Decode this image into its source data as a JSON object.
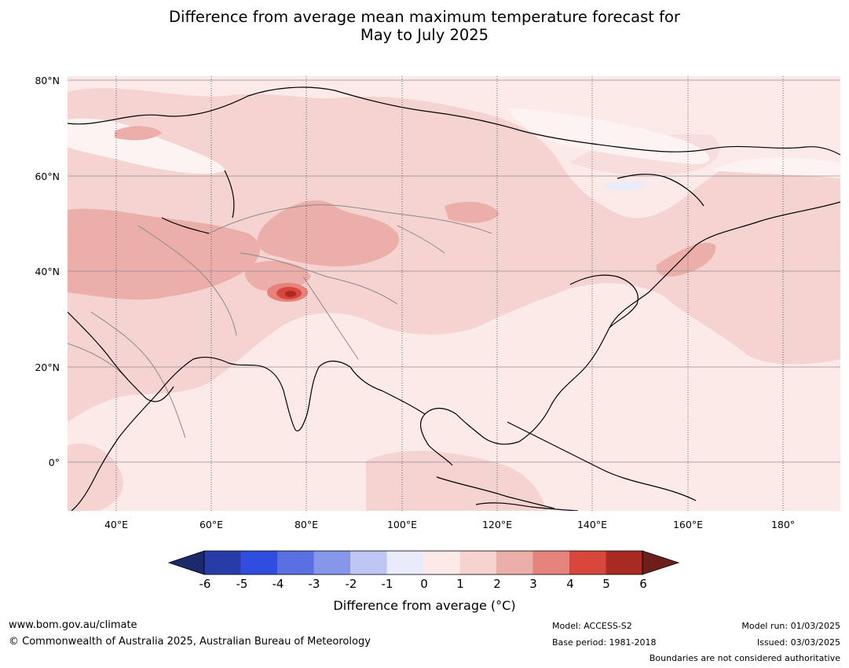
{
  "title": {
    "line1": "Difference from average mean maximum temperature forecast for",
    "line2": "May to July 2025"
  },
  "map": {
    "latitude_labels": [
      "80°N",
      "60°N",
      "40°N",
      "20°N",
      "0°"
    ],
    "longitude_labels": [
      "40°E",
      "60°E",
      "80°E",
      "100°E",
      "120°E",
      "140°E",
      "160°E",
      "180°"
    ]
  },
  "colorbar": {
    "ticks": [
      "-6",
      "-5",
      "-4",
      "-3",
      "-2",
      "-1",
      "0",
      "1",
      "2",
      "3",
      "4",
      "5",
      "6"
    ],
    "colors": [
      "#1b2a6b",
      "#283ca8",
      "#2f4ede",
      "#5a6fe2",
      "#8697ea",
      "#bfc6f3",
      "#e9ebfb",
      "#fbeae8",
      "#f4d3d1",
      "#ecaea9",
      "#e4827b",
      "#d9463c",
      "#a92a23",
      "#6e1f19"
    ],
    "title": "Difference from average (°C)"
  },
  "footer": {
    "website": "www.bom.gov.au/climate",
    "copyright": "© Commonwealth of Australia 2025, Australian Bureau of Meteorology",
    "model": "Model: ACCESS-S2",
    "base_period": "Base period: 1981-2018",
    "model_run": "Model run: 01/03/2025",
    "issued": "Issued: 03/03/2025",
    "disclaimer": "Boundaries are not considered authoritative"
  }
}
